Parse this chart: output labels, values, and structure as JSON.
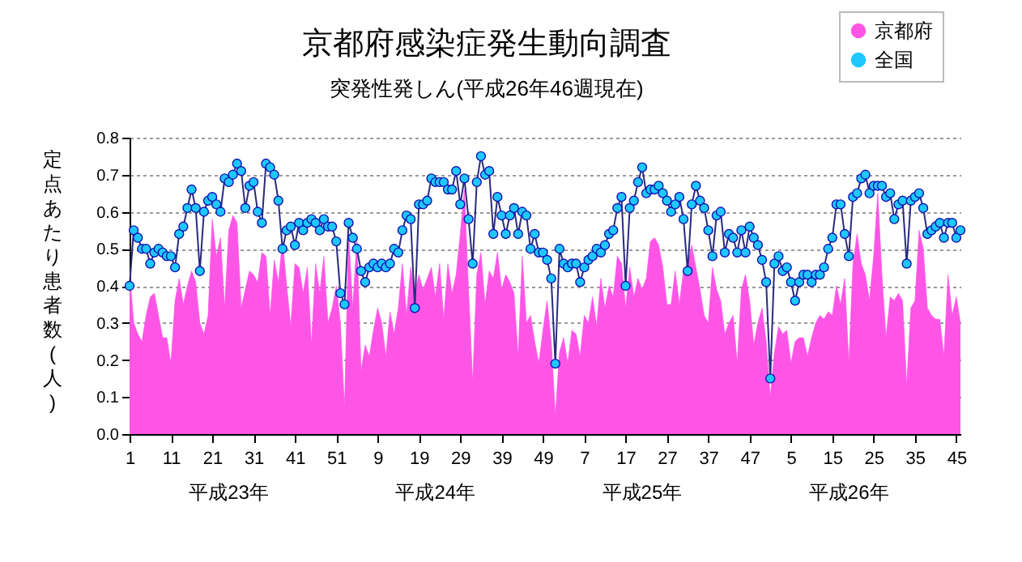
{
  "chart_data": {
    "type": "area",
    "title": "京都府感染症発生動向調査",
    "subtitle": "突発性発しん(平成26年46週現在)",
    "ylabel": "定点あたり患者数(人)",
    "annotations": [
      "平成23年",
      "平成24年",
      "平成25年",
      "平成26年"
    ],
    "categories": [
      "1",
      null,
      null,
      null,
      null,
      null,
      null,
      null,
      null,
      null,
      "11",
      null,
      null,
      null,
      null,
      null,
      null,
      null,
      null,
      null,
      "21",
      null,
      null,
      null,
      null,
      null,
      null,
      null,
      null,
      null,
      "31",
      null,
      null,
      null,
      null,
      null,
      null,
      null,
      null,
      null,
      "41",
      null,
      null,
      null,
      null,
      null,
      null,
      null,
      null,
      null,
      "51",
      null,
      null,
      null,
      null,
      null,
      null,
      null,
      null,
      null,
      "9",
      null,
      null,
      null,
      null,
      null,
      null,
      null,
      null,
      null,
      "19",
      null,
      null,
      null,
      null,
      null,
      null,
      null,
      null,
      null,
      "29",
      null,
      null,
      null,
      null,
      null,
      null,
      null,
      null,
      null,
      "39",
      null,
      null,
      null,
      null,
      null,
      null,
      null,
      null,
      null,
      "49",
      null,
      null,
      null,
      null,
      null,
      null,
      null,
      null,
      null,
      "7",
      null,
      null,
      null,
      null,
      null,
      null,
      null,
      null,
      null,
      "17",
      null,
      null,
      null,
      null,
      null,
      null,
      null,
      null,
      null,
      "27",
      null,
      null,
      null,
      null,
      null,
      null,
      null,
      null,
      null,
      "37",
      null,
      null,
      null,
      null,
      null,
      null,
      null,
      null,
      null,
      "47",
      null,
      null,
      null,
      null,
      null,
      null,
      null,
      null,
      null,
      "5",
      null,
      null,
      null,
      null,
      null,
      null,
      null,
      null,
      null,
      "15",
      null,
      null,
      null,
      null,
      null,
      null,
      null,
      null,
      null,
      "25",
      null,
      null,
      null,
      null,
      null,
      null,
      null,
      null,
      null,
      "35",
      null,
      null,
      null,
      null,
      null,
      null,
      null,
      null,
      null,
      "45",
      null
    ],
    "series": [
      {
        "name": "京都府",
        "color": "#ff55e6",
        "values": [
          0.44,
          0.3,
          0.27,
          0.25,
          0.32,
          0.37,
          0.38,
          0.32,
          0.26,
          0.26,
          0.19,
          0.36,
          0.42,
          0.35,
          0.4,
          0.44,
          0.41,
          0.3,
          0.27,
          0.32,
          0.58,
          0.48,
          0.53,
          0.34,
          0.55,
          0.59,
          0.57,
          0.34,
          0.39,
          0.44,
          0.43,
          0.41,
          0.49,
          0.48,
          0.32,
          0.47,
          0.41,
          0.52,
          0.4,
          0.29,
          0.46,
          0.45,
          0.38,
          0.45,
          0.24,
          0.46,
          0.38,
          0.48,
          0.3,
          0.34,
          0.4,
          0.3,
          0.07,
          0.54,
          0.34,
          0.53,
          0.17,
          0.24,
          0.21,
          0.28,
          0.34,
          0.3,
          0.21,
          0.33,
          0.27,
          0.34,
          0.46,
          0.32,
          0.45,
          0.38,
          0.43,
          0.39,
          0.42,
          0.45,
          0.37,
          0.46,
          0.31,
          0.46,
          0.38,
          0.43,
          0.54,
          0.66,
          0.39,
          0.14,
          0.43,
          0.49,
          0.35,
          0.44,
          0.42,
          0.49,
          0.39,
          0.43,
          0.41,
          0.38,
          0.21,
          0.48,
          0.3,
          0.32,
          0.25,
          0.19,
          0.28,
          0.36,
          0.25,
          0.05,
          0.22,
          0.26,
          0.19,
          0.28,
          0.27,
          0.21,
          0.32,
          0.3,
          0.37,
          0.29,
          0.42,
          0.34,
          0.4,
          0.37,
          0.48,
          0.46,
          0.34,
          0.45,
          0.37,
          0.42,
          0.39,
          0.42,
          0.52,
          0.53,
          0.51,
          0.45,
          0.35,
          0.35,
          0.44,
          0.35,
          0.44,
          0.46,
          0.51,
          0.45,
          0.39,
          0.32,
          0.3,
          0.45,
          0.39,
          0.36,
          0.27,
          0.3,
          0.32,
          0.19,
          0.39,
          0.43,
          0.36,
          0.24,
          0.3,
          0.34,
          0.25,
          0.1,
          0.22,
          0.29,
          0.27,
          0.28,
          0.19,
          0.25,
          0.26,
          0.26,
          0.21,
          0.26,
          0.3,
          0.32,
          0.31,
          0.33,
          0.32,
          0.4,
          0.35,
          0.42,
          0.19,
          0.46,
          0.54,
          0.46,
          0.43,
          0.36,
          0.48,
          0.65,
          0.43,
          0.26,
          0.37,
          0.36,
          0.38,
          0.36,
          0.13,
          0.34,
          0.36,
          0.55,
          0.5,
          0.34,
          0.32,
          0.31,
          0.31,
          0.21,
          0.43,
          0.32,
          0.37,
          0.3
        ]
      },
      {
        "name": "全国",
        "type": "line",
        "color": "#1ec8ff",
        "marker": "circle",
        "values": [
          0.4,
          0.55,
          0.53,
          0.5,
          0.5,
          0.46,
          0.49,
          0.5,
          0.49,
          0.48,
          0.48,
          0.45,
          0.54,
          0.56,
          0.61,
          0.66,
          0.61,
          0.44,
          0.6,
          0.63,
          0.64,
          0.62,
          0.6,
          0.69,
          0.68,
          0.7,
          0.73,
          0.71,
          0.61,
          0.67,
          0.68,
          0.6,
          0.57,
          0.73,
          0.72,
          0.7,
          0.63,
          0.5,
          0.55,
          0.56,
          0.51,
          0.57,
          0.55,
          0.57,
          0.58,
          0.57,
          0.55,
          0.58,
          0.56,
          0.56,
          0.52,
          0.38,
          0.35,
          0.57,
          0.53,
          0.5,
          0.44,
          0.41,
          0.45,
          0.46,
          0.45,
          0.46,
          0.45,
          0.46,
          0.5,
          0.49,
          0.55,
          0.59,
          0.58,
          0.34,
          0.62,
          0.62,
          0.63,
          0.69,
          0.68,
          0.68,
          0.68,
          0.66,
          0.66,
          0.71,
          0.62,
          0.69,
          0.58,
          0.46,
          0.68,
          0.75,
          0.7,
          0.71,
          0.54,
          0.64,
          0.59,
          0.54,
          0.59,
          0.61,
          0.54,
          0.6,
          0.59,
          0.5,
          0.54,
          0.49,
          0.49,
          0.47,
          0.42,
          0.19,
          0.5,
          0.46,
          0.45,
          0.46,
          0.46,
          0.41,
          0.45,
          0.47,
          0.48,
          0.5,
          0.49,
          0.51,
          0.54,
          0.55,
          0.61,
          0.64,
          0.4,
          0.61,
          0.63,
          0.68,
          0.72,
          0.65,
          0.66,
          0.66,
          0.67,
          0.65,
          0.63,
          0.6,
          0.62,
          0.64,
          0.58,
          0.44,
          0.62,
          0.67,
          0.63,
          0.61,
          0.55,
          0.48,
          0.59,
          0.6,
          0.49,
          0.54,
          0.53,
          0.49,
          0.55,
          0.49,
          0.56,
          0.53,
          0.51,
          0.47,
          0.41,
          0.15,
          0.46,
          0.48,
          0.44,
          0.45,
          0.41,
          0.36,
          0.41,
          0.43,
          0.43,
          0.41,
          0.43,
          0.43,
          0.45,
          0.5,
          0.53,
          0.62,
          0.62,
          0.54,
          0.48,
          0.64,
          0.65,
          0.69,
          0.7,
          0.65,
          0.67,
          0.67,
          0.67,
          0.64,
          0.65,
          0.58,
          0.62,
          0.63,
          0.46,
          0.63,
          0.64,
          0.65,
          0.61,
          0.54,
          0.55,
          0.56,
          0.57,
          0.53,
          0.57,
          0.57,
          0.53,
          0.55
        ]
      }
    ],
    "ylim": [
      0,
      0.8
    ],
    "yticks": [
      {
        "value": 0,
        "label": "0.0"
      },
      0.1,
      0.2,
      0.3,
      0.4,
      0.5,
      0.6,
      0.7,
      0.8
    ],
    "grid": "y",
    "legend": "top right"
  }
}
